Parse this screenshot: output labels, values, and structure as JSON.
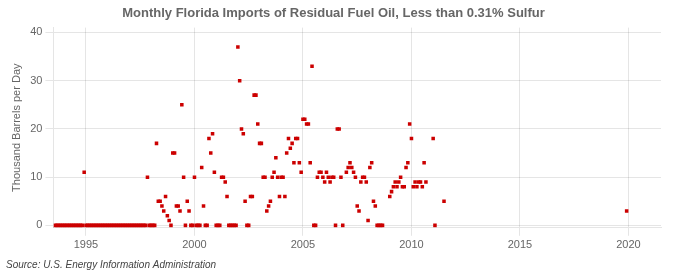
{
  "chart_data": {
    "type": "scatter",
    "title": "Monthly Florida Imports of Residual Fuel Oil, Less than 0.31% Sulfur",
    "ylabel": "Thousand Barrels per Day",
    "annotations": [
      "Source: U.S. Energy Information Administration"
    ],
    "color": "#cc0000",
    "marker": "square",
    "grid": true,
    "xlim": [
      1993.5,
      2021.5
    ],
    "ylim": [
      -0.5,
      41
    ],
    "xticks": [
      1995,
      2000,
      2005,
      2010,
      2015,
      2020
    ],
    "yticks": [
      0,
      10,
      20,
      30,
      40
    ],
    "x": [
      1993.583,
      1993.667,
      1993.75,
      1993.833,
      1993.917,
      1994.0,
      1994.083,
      1994.167,
      1994.25,
      1994.333,
      1994.417,
      1994.5,
      1994.583,
      1994.667,
      1994.75,
      1994.833,
      1994.917,
      1995.0,
      1995.083,
      1995.167,
      1995.25,
      1995.333,
      1995.417,
      1995.5,
      1995.583,
      1995.667,
      1995.75,
      1995.833,
      1995.917,
      1996.0,
      1996.083,
      1996.167,
      1996.25,
      1996.333,
      1996.417,
      1996.5,
      1996.583,
      1996.667,
      1996.75,
      1996.833,
      1996.917,
      1997.0,
      1997.083,
      1997.167,
      1997.25,
      1997.333,
      1997.417,
      1997.5,
      1997.583,
      1997.667,
      1997.75,
      1997.833,
      1997.917,
      1998.0,
      1998.083,
      1998.167,
      1998.25,
      1998.333,
      1998.417,
      1998.5,
      1998.583,
      1998.667,
      1998.75,
      1998.833,
      1998.917,
      1999.0,
      1999.083,
      1999.167,
      1999.25,
      1999.333,
      1999.417,
      1999.5,
      1999.583,
      1999.667,
      1999.75,
      1999.833,
      1999.917,
      2000.0,
      2000.083,
      2000.167,
      2000.25,
      2000.333,
      2000.417,
      2000.5,
      2000.583,
      2000.667,
      2000.75,
      2000.833,
      2000.917,
      2001.0,
      2001.083,
      2001.167,
      2001.25,
      2001.333,
      2001.417,
      2001.5,
      2001.583,
      2001.667,
      2001.75,
      2001.833,
      2001.917,
      2002.0,
      2002.083,
      2002.167,
      2002.25,
      2002.333,
      2002.417,
      2002.5,
      2002.583,
      2002.667,
      2002.75,
      2002.833,
      2002.917,
      2003.0,
      2003.083,
      2003.167,
      2003.25,
      2003.333,
      2003.417,
      2003.5,
      2003.583,
      2003.667,
      2003.75,
      2003.833,
      2003.917,
      2004.0,
      2004.083,
      2004.167,
      2004.25,
      2004.333,
      2004.417,
      2004.5,
      2004.583,
      2004.667,
      2004.75,
      2004.833,
      2004.917,
      2005.0,
      2005.083,
      2005.167,
      2005.25,
      2005.333,
      2005.417,
      2005.5,
      2005.583,
      2005.667,
      2005.75,
      2005.833,
      2005.917,
      2006.0,
      2006.083,
      2006.167,
      2006.25,
      2006.333,
      2006.417,
      2006.5,
      2006.583,
      2006.667,
      2006.75,
      2006.833,
      2007.0,
      2007.083,
      2007.167,
      2007.25,
      2007.333,
      2007.417,
      2007.5,
      2007.583,
      2007.667,
      2007.75,
      2007.833,
      2007.917,
      2008.0,
      2008.083,
      2008.167,
      2008.25,
      2008.333,
      2008.417,
      2008.5,
      2008.583,
      2008.667,
      2009.0,
      2009.083,
      2009.167,
      2009.25,
      2009.333,
      2009.417,
      2009.5,
      2009.583,
      2009.667,
      2009.75,
      2009.833,
      2009.917,
      2010.0,
      2010.083,
      2010.167,
      2010.25,
      2010.333,
      2010.417,
      2010.5,
      2010.583,
      2010.667,
      2011.0,
      2011.083,
      2011.5,
      2019.917
    ],
    "values": [
      0,
      0,
      0,
      0,
      0,
      0,
      0,
      0,
      0,
      0,
      0,
      0,
      0,
      0,
      0,
      0,
      11,
      0,
      0,
      0,
      0,
      0,
      0,
      0,
      0,
      0,
      0,
      0,
      0,
      0,
      0,
      0,
      0,
      0,
      0,
      0,
      0,
      0,
      0,
      0,
      0,
      0,
      0,
      0,
      0,
      0,
      0,
      0,
      0,
      0,
      0,
      10,
      0,
      0,
      0,
      0,
      17,
      5,
      5,
      4,
      3,
      6,
      2,
      1,
      0,
      15,
      15,
      4,
      4,
      3,
      25,
      10,
      0,
      5,
      3,
      0,
      0,
      10,
      0,
      0,
      0,
      12,
      4,
      0,
      0,
      18,
      15,
      19,
      11,
      0,
      0,
      0,
      10,
      10,
      9,
      6,
      0,
      0,
      0,
      0,
      0,
      37,
      30,
      20,
      19,
      5,
      0,
      0,
      6,
      6,
      27,
      27,
      21,
      17,
      17,
      10,
      10,
      3,
      4,
      5,
      10,
      11,
      14,
      10,
      6,
      10,
      10,
      6,
      15,
      18,
      16,
      17,
      13,
      18,
      18,
      13,
      11,
      22,
      22,
      21,
      21,
      13,
      33,
      0,
      0,
      10,
      11,
      11,
      10,
      9,
      11,
      10,
      9,
      10,
      10,
      0,
      20,
      20,
      10,
      0,
      11,
      12,
      13,
      12,
      11,
      10,
      4,
      3,
      9,
      10,
      10,
      9,
      1,
      12,
      13,
      5,
      4,
      0,
      0,
      0,
      0,
      6,
      7,
      8,
      9,
      8,
      9,
      10,
      8,
      8,
      12,
      13,
      21,
      18,
      8,
      9,
      8,
      9,
      9,
      8,
      13,
      9,
      18,
      0,
      5,
      3
    ]
  }
}
